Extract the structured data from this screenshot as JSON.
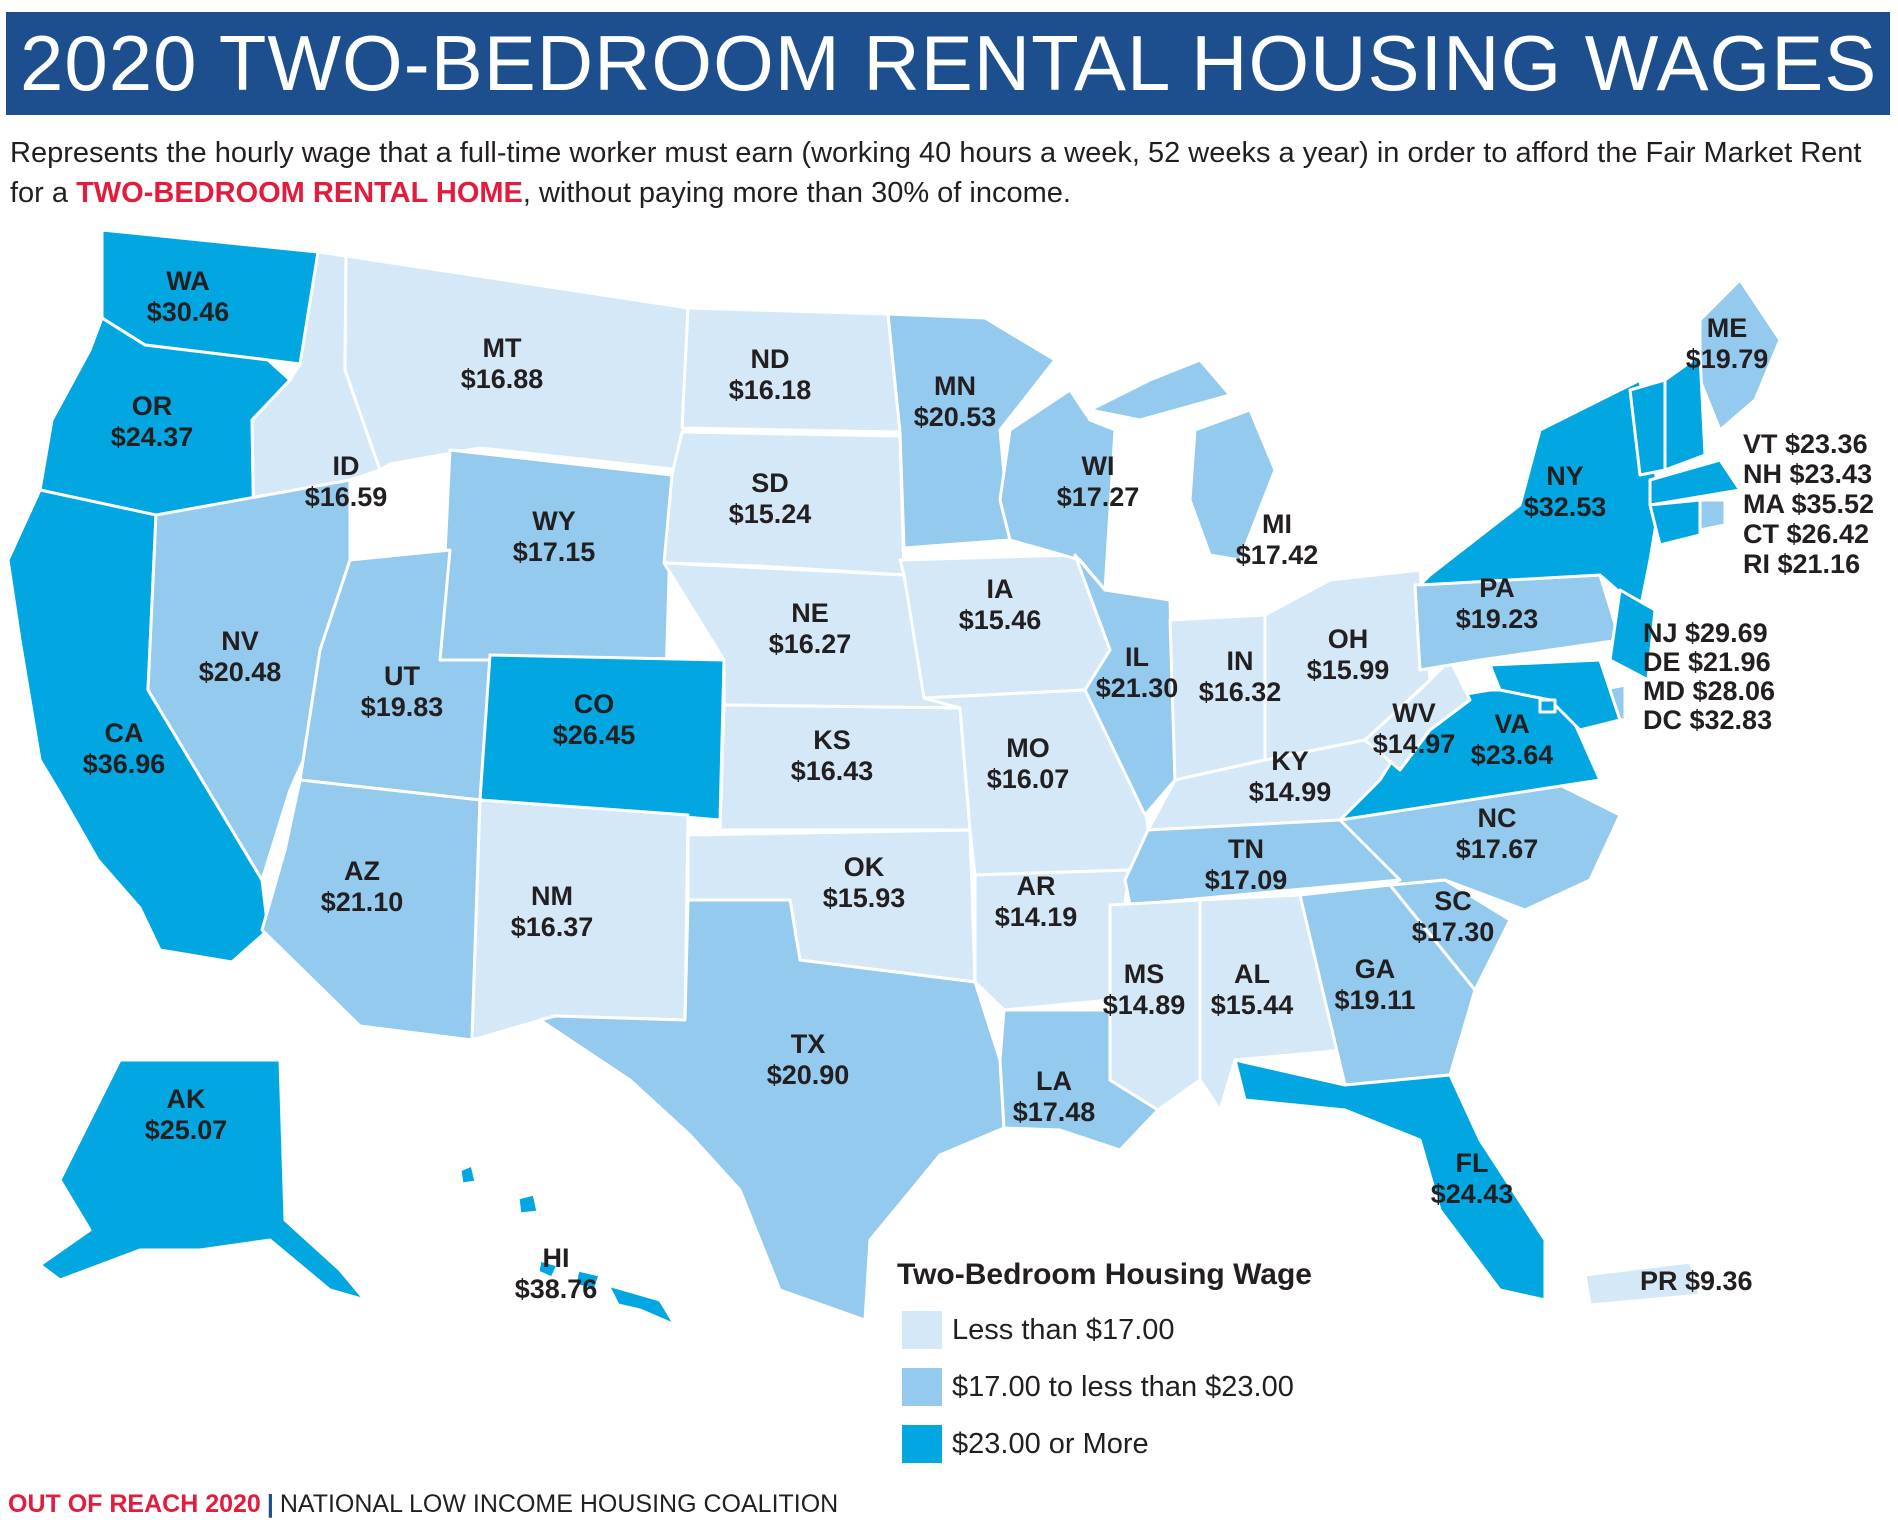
{
  "title": "2020 TWO-BEDROOM RENTAL HOUSING WAGES",
  "description": {
    "part1": "Represents the hourly wage that a full-time worker must earn (working 40 hours a week, 52 weeks a year) in order to afford the Fair Market Rent for a ",
    "highlight": "TWO-BEDROOM RENTAL HOME",
    "part2": ", without paying more than 30% of income."
  },
  "colors": {
    "low": "#d4e8f7",
    "mid": "#93caed",
    "high": "#02a6e0",
    "accent_red": "#e31c3d",
    "header_blue": "#1d4f8f"
  },
  "legend": {
    "title": "Two-Bedroom Housing Wage",
    "items": [
      {
        "label": "Less than $17.00",
        "color": "#d4e8f7"
      },
      {
        "label": "$17.00 to less than $23.00",
        "color": "#93caed"
      },
      {
        "label": "$23.00 or More",
        "color": "#02a6e0"
      }
    ]
  },
  "states": [
    {
      "abbr": "WA",
      "wage": "$30.46",
      "tier": "high"
    },
    {
      "abbr": "OR",
      "wage": "$24.37",
      "tier": "high"
    },
    {
      "abbr": "CA",
      "wage": "$36.96",
      "tier": "high"
    },
    {
      "abbr": "ID",
      "wage": "$16.59",
      "tier": "low"
    },
    {
      "abbr": "NV",
      "wage": "$20.48",
      "tier": "mid"
    },
    {
      "abbr": "MT",
      "wage": "$16.88",
      "tier": "low"
    },
    {
      "abbr": "WY",
      "wage": "$17.15",
      "tier": "mid"
    },
    {
      "abbr": "UT",
      "wage": "$19.83",
      "tier": "mid"
    },
    {
      "abbr": "AZ",
      "wage": "$21.10",
      "tier": "mid"
    },
    {
      "abbr": "CO",
      "wage": "$26.45",
      "tier": "high"
    },
    {
      "abbr": "NM",
      "wage": "$16.37",
      "tier": "low"
    },
    {
      "abbr": "ND",
      "wage": "$16.18",
      "tier": "low"
    },
    {
      "abbr": "SD",
      "wage": "$15.24",
      "tier": "low"
    },
    {
      "abbr": "NE",
      "wage": "$16.27",
      "tier": "low"
    },
    {
      "abbr": "KS",
      "wage": "$16.43",
      "tier": "low"
    },
    {
      "abbr": "OK",
      "wage": "$15.93",
      "tier": "low"
    },
    {
      "abbr": "TX",
      "wage": "$20.90",
      "tier": "mid"
    },
    {
      "abbr": "MN",
      "wage": "$20.53",
      "tier": "mid"
    },
    {
      "abbr": "IA",
      "wage": "$15.46",
      "tier": "low"
    },
    {
      "abbr": "MO",
      "wage": "$16.07",
      "tier": "low"
    },
    {
      "abbr": "AR",
      "wage": "$14.19",
      "tier": "low"
    },
    {
      "abbr": "LA",
      "wage": "$17.48",
      "tier": "mid"
    },
    {
      "abbr": "WI",
      "wage": "$17.27",
      "tier": "mid"
    },
    {
      "abbr": "IL",
      "wage": "$21.30",
      "tier": "mid"
    },
    {
      "abbr": "MI",
      "wage": "$17.42",
      "tier": "mid"
    },
    {
      "abbr": "IN",
      "wage": "$16.32",
      "tier": "low"
    },
    {
      "abbr": "OH",
      "wage": "$15.99",
      "tier": "low"
    },
    {
      "abbr": "KY",
      "wage": "$14.99",
      "tier": "low"
    },
    {
      "abbr": "TN",
      "wage": "$17.09",
      "tier": "mid"
    },
    {
      "abbr": "MS",
      "wage": "$14.89",
      "tier": "low"
    },
    {
      "abbr": "AL",
      "wage": "$15.44",
      "tier": "low"
    },
    {
      "abbr": "GA",
      "wage": "$19.11",
      "tier": "mid"
    },
    {
      "abbr": "FL",
      "wage": "$24.43",
      "tier": "high"
    },
    {
      "abbr": "SC",
      "wage": "$17.30",
      "tier": "mid"
    },
    {
      "abbr": "NC",
      "wage": "$17.67",
      "tier": "mid"
    },
    {
      "abbr": "VA",
      "wage": "$23.64",
      "tier": "high"
    },
    {
      "abbr": "WV",
      "wage": "$14.97",
      "tier": "low"
    },
    {
      "abbr": "PA",
      "wage": "$19.23",
      "tier": "mid"
    },
    {
      "abbr": "NY",
      "wage": "$32.53",
      "tier": "high"
    },
    {
      "abbr": "ME",
      "wage": "$19.79",
      "tier": "mid"
    },
    {
      "abbr": "AK",
      "wage": "$25.07",
      "tier": "high"
    },
    {
      "abbr": "HI",
      "wage": "$38.76",
      "tier": "high"
    },
    {
      "abbr": "PR",
      "wage": "$9.36",
      "tier": "low"
    },
    {
      "abbr": "VT",
      "wage": "$23.36",
      "tier": "high"
    },
    {
      "abbr": "NH",
      "wage": "$23.43",
      "tier": "high"
    },
    {
      "abbr": "MA",
      "wage": "$35.52",
      "tier": "high"
    },
    {
      "abbr": "CT",
      "wage": "$26.42",
      "tier": "high"
    },
    {
      "abbr": "RI",
      "wage": "$21.16",
      "tier": "mid"
    },
    {
      "abbr": "NJ",
      "wage": "$29.69",
      "tier": "high"
    },
    {
      "abbr": "DE",
      "wage": "$21.96",
      "tier": "mid"
    },
    {
      "abbr": "MD",
      "wage": "$28.06",
      "tier": "high"
    },
    {
      "abbr": "DC",
      "wage": "$32.83",
      "tier": "high"
    }
  ],
  "footer": {
    "brand": "OUT OF REACH 2020",
    "separator": "|",
    "org": "NATIONAL LOW INCOME HOUSING COALITION"
  }
}
